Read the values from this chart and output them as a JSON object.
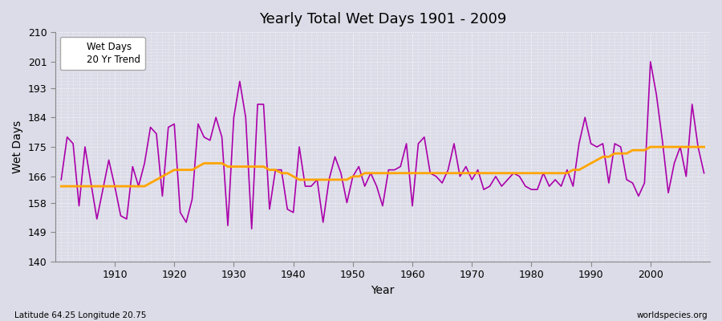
{
  "title": "Yearly Total Wet Days 1901 - 2009",
  "xlabel": "Year",
  "ylabel": "Wet Days",
  "lat_lon_label": "Latitude 64.25 Longitude 20.75",
  "watermark": "worldspecies.org",
  "wet_days_color": "#AA00AA",
  "trend_color": "#FFA500",
  "background_color": "#DCDCE8",
  "plot_bg_color": "#DCDCE8",
  "grid_color": "#ffffff",
  "ylim": [
    140,
    210
  ],
  "yticks": [
    140,
    149,
    158,
    166,
    175,
    184,
    193,
    201,
    210
  ],
  "xticks": [
    1910,
    1920,
    1930,
    1940,
    1950,
    1960,
    1970,
    1980,
    1990,
    2000
  ],
  "years": [
    1901,
    1902,
    1903,
    1904,
    1905,
    1906,
    1907,
    1908,
    1909,
    1910,
    1911,
    1912,
    1913,
    1914,
    1915,
    1916,
    1917,
    1918,
    1919,
    1920,
    1921,
    1922,
    1923,
    1924,
    1925,
    1926,
    1927,
    1928,
    1929,
    1930,
    1931,
    1932,
    1933,
    1934,
    1935,
    1936,
    1937,
    1938,
    1939,
    1940,
    1941,
    1942,
    1943,
    1944,
    1945,
    1946,
    1947,
    1948,
    1949,
    1950,
    1951,
    1952,
    1953,
    1954,
    1955,
    1956,
    1957,
    1958,
    1959,
    1960,
    1961,
    1962,
    1963,
    1964,
    1965,
    1966,
    1967,
    1968,
    1969,
    1970,
    1971,
    1972,
    1973,
    1974,
    1975,
    1976,
    1977,
    1978,
    1979,
    1980,
    1981,
    1982,
    1983,
    1984,
    1985,
    1986,
    1987,
    1988,
    1989,
    1990,
    1991,
    1992,
    1993,
    1994,
    1995,
    1996,
    1997,
    1998,
    1999,
    2000,
    2001,
    2002,
    2003,
    2004,
    2005,
    2006,
    2007,
    2008,
    2009
  ],
  "wet_days": [
    165,
    178,
    176,
    157,
    175,
    164,
    153,
    162,
    171,
    163,
    154,
    153,
    169,
    163,
    170,
    181,
    179,
    160,
    181,
    182,
    155,
    152,
    159,
    182,
    178,
    177,
    184,
    178,
    151,
    184,
    195,
    184,
    150,
    188,
    188,
    156,
    168,
    168,
    156,
    155,
    175,
    163,
    163,
    165,
    152,
    165,
    172,
    167,
    158,
    166,
    169,
    163,
    167,
    163,
    157,
    168,
    168,
    169,
    176,
    157,
    176,
    178,
    167,
    166,
    164,
    168,
    176,
    166,
    169,
    165,
    168,
    162,
    163,
    166,
    163,
    165,
    167,
    166,
    163,
    162,
    162,
    167,
    163,
    165,
    163,
    168,
    163,
    176,
    184,
    176,
    175,
    176,
    164,
    176,
    175,
    165,
    164,
    160,
    164,
    201,
    191,
    177,
    161,
    170,
    175,
    166,
    188,
    175,
    167
  ],
  "trend": [
    163,
    163,
    163,
    163,
    163,
    163,
    163,
    163,
    163,
    163,
    163,
    163,
    163,
    163,
    163,
    164,
    165,
    166,
    167,
    168,
    168,
    168,
    168,
    169,
    170,
    170,
    170,
    170,
    169,
    169,
    169,
    169,
    169,
    169,
    169,
    168,
    168,
    167,
    167,
    166,
    165,
    165,
    165,
    165,
    165,
    165,
    165,
    165,
    165,
    166,
    166,
    167,
    167,
    167,
    167,
    167,
    167,
    167,
    167,
    167,
    167,
    167,
    167,
    167,
    167,
    167,
    167,
    167,
    167,
    167,
    167,
    167,
    167,
    167,
    167,
    167,
    167,
    167,
    167,
    167,
    167,
    167,
    167,
    167,
    167,
    167,
    168,
    168,
    169,
    170,
    171,
    172,
    172,
    173,
    173,
    173,
    174,
    174,
    174,
    175,
    175,
    175,
    175,
    175,
    175,
    175,
    175,
    175,
    175
  ]
}
